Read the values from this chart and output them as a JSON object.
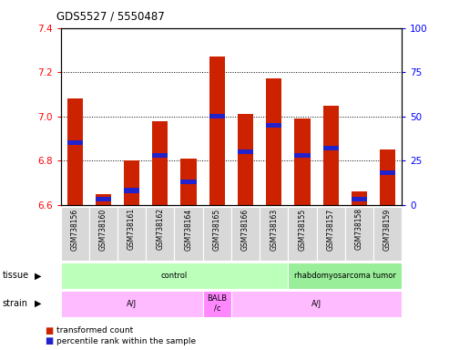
{
  "title": "GDS5527 / 5550487",
  "samples": [
    "GSM738156",
    "GSM738160",
    "GSM738161",
    "GSM738162",
    "GSM738164",
    "GSM738165",
    "GSM738166",
    "GSM738163",
    "GSM738155",
    "GSM738157",
    "GSM738158",
    "GSM738159"
  ],
  "transformed_count": [
    7.08,
    6.65,
    6.8,
    6.98,
    6.81,
    7.27,
    7.01,
    7.17,
    6.99,
    7.05,
    6.66,
    6.85
  ],
  "percentile_rank": [
    35,
    3,
    8,
    28,
    13,
    50,
    30,
    45,
    28,
    32,
    3,
    18
  ],
  "ylim_left": [
    6.6,
    7.4
  ],
  "ylim_right": [
    0,
    100
  ],
  "yticks_left": [
    6.6,
    6.8,
    7.0,
    7.2,
    7.4
  ],
  "yticks_right": [
    0,
    25,
    50,
    75,
    100
  ],
  "bar_color": "#cc2200",
  "blue_color": "#2222cc",
  "tissue_groups": [
    {
      "label": "control",
      "start": 0,
      "end": 8,
      "color": "#bbffbb"
    },
    {
      "label": "rhabdomyosarcoma tumor",
      "start": 8,
      "end": 12,
      "color": "#99ee99"
    }
  ],
  "strain_groups": [
    {
      "label": "A/J",
      "start": 0,
      "end": 5,
      "color": "#ffbbff"
    },
    {
      "label": "BALB\n/c",
      "start": 5,
      "end": 6,
      "color": "#ff88ff"
    },
    {
      "label": "A/J",
      "start": 6,
      "end": 12,
      "color": "#ffbbff"
    }
  ],
  "tissue_label": "tissue",
  "strain_label": "strain",
  "legend_items": [
    {
      "label": "transformed count",
      "color": "#cc2200"
    },
    {
      "label": "percentile rank within the sample",
      "color": "#2222cc"
    }
  ],
  "baseline": 6.6,
  "bar_width": 0.55
}
